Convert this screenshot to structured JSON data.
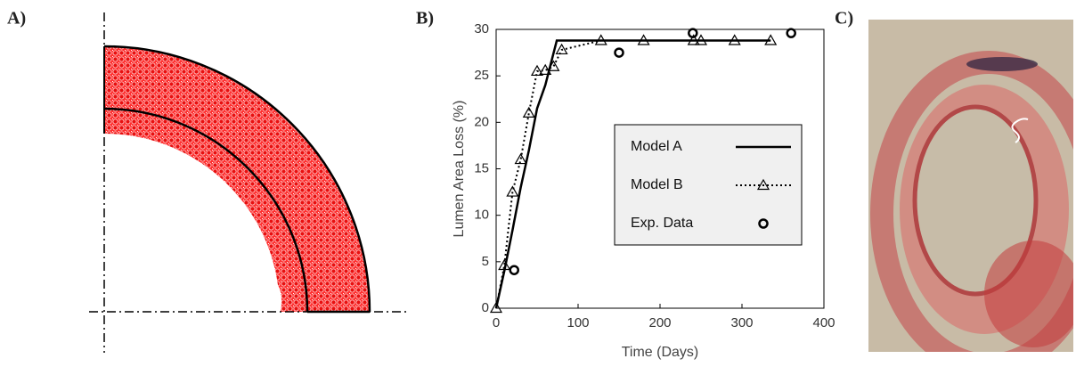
{
  "panels": {
    "a": "A)",
    "b": "B)",
    "c": "C)"
  },
  "chart_data": {
    "type": "line",
    "xlabel": "Time (Days)",
    "ylabel": "Lumen Area Loss (%)",
    "xlim": [
      0,
      400
    ],
    "xticks": [
      0,
      100,
      200,
      300,
      400
    ],
    "ylim": [
      0,
      30
    ],
    "yticks": [
      0,
      5,
      10,
      15,
      20,
      25,
      30
    ],
    "series": [
      {
        "name": "Model A",
        "color": "#000000",
        "linestyle": "solid",
        "marker": "none",
        "x": [
          0,
          10,
          20,
          30,
          40,
          50,
          60,
          74,
          335
        ],
        "values": [
          0,
          4,
          8.4,
          13,
          17,
          21.5,
          24,
          28.8,
          28.8
        ]
      },
      {
        "name": "Model B",
        "color": "#000000",
        "linestyle": "dotted",
        "marker": "triangle",
        "x": [
          0,
          10,
          20,
          30,
          40,
          50,
          60,
          70,
          80,
          128,
          180,
          241,
          250,
          291,
          335
        ],
        "values": [
          0,
          4.6,
          12.5,
          16,
          21,
          25.5,
          25.6,
          26,
          27.8,
          28.8,
          28.8,
          28.8,
          28.8,
          28.8,
          28.8
        ]
      },
      {
        "name": "Exp. Data",
        "color": "#000000",
        "linestyle": "none",
        "marker": "circle",
        "x": [
          22,
          150,
          240,
          360
        ],
        "values": [
          4.1,
          27.5,
          29.6,
          29.6
        ]
      }
    ]
  }
}
